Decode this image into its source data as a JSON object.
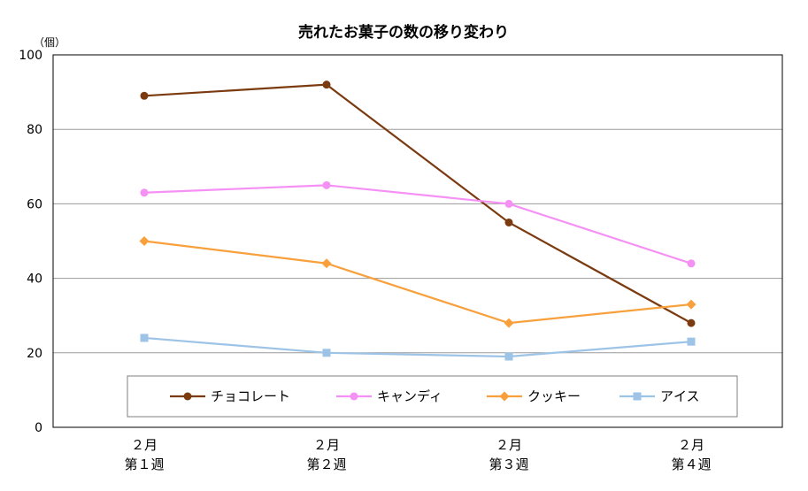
{
  "chart_data": {
    "type": "line",
    "title": "売れたお菓子の数の移り変わり",
    "ylabel": "（個）",
    "xlabel": "",
    "ylim": [
      0,
      100
    ],
    "yticks": [
      "0",
      "20",
      "40",
      "60",
      "80",
      "100"
    ],
    "categories": [
      [
        "２月",
        "第１週"
      ],
      [
        "２月",
        "第２週"
      ],
      [
        "２月",
        "第３週"
      ],
      [
        "２月",
        "第４週"
      ]
    ],
    "grid": true,
    "legend_position": "bottom",
    "series": [
      {
        "name": "チョコレート",
        "values": [
          89,
          92,
          55,
          28
        ],
        "color": "#7B3A0F",
        "marker": "circle"
      },
      {
        "name": "キャンディ",
        "values": [
          63,
          65,
          60,
          44
        ],
        "color": "#F590F5",
        "marker": "circle"
      },
      {
        "name": "クッキー",
        "values": [
          50,
          44,
          28,
          33
        ],
        "color": "#F7A03C",
        "marker": "diamond"
      },
      {
        "name": "アイス",
        "values": [
          24,
          20,
          19,
          23
        ],
        "color": "#9DC3E6",
        "marker": "square"
      }
    ]
  }
}
